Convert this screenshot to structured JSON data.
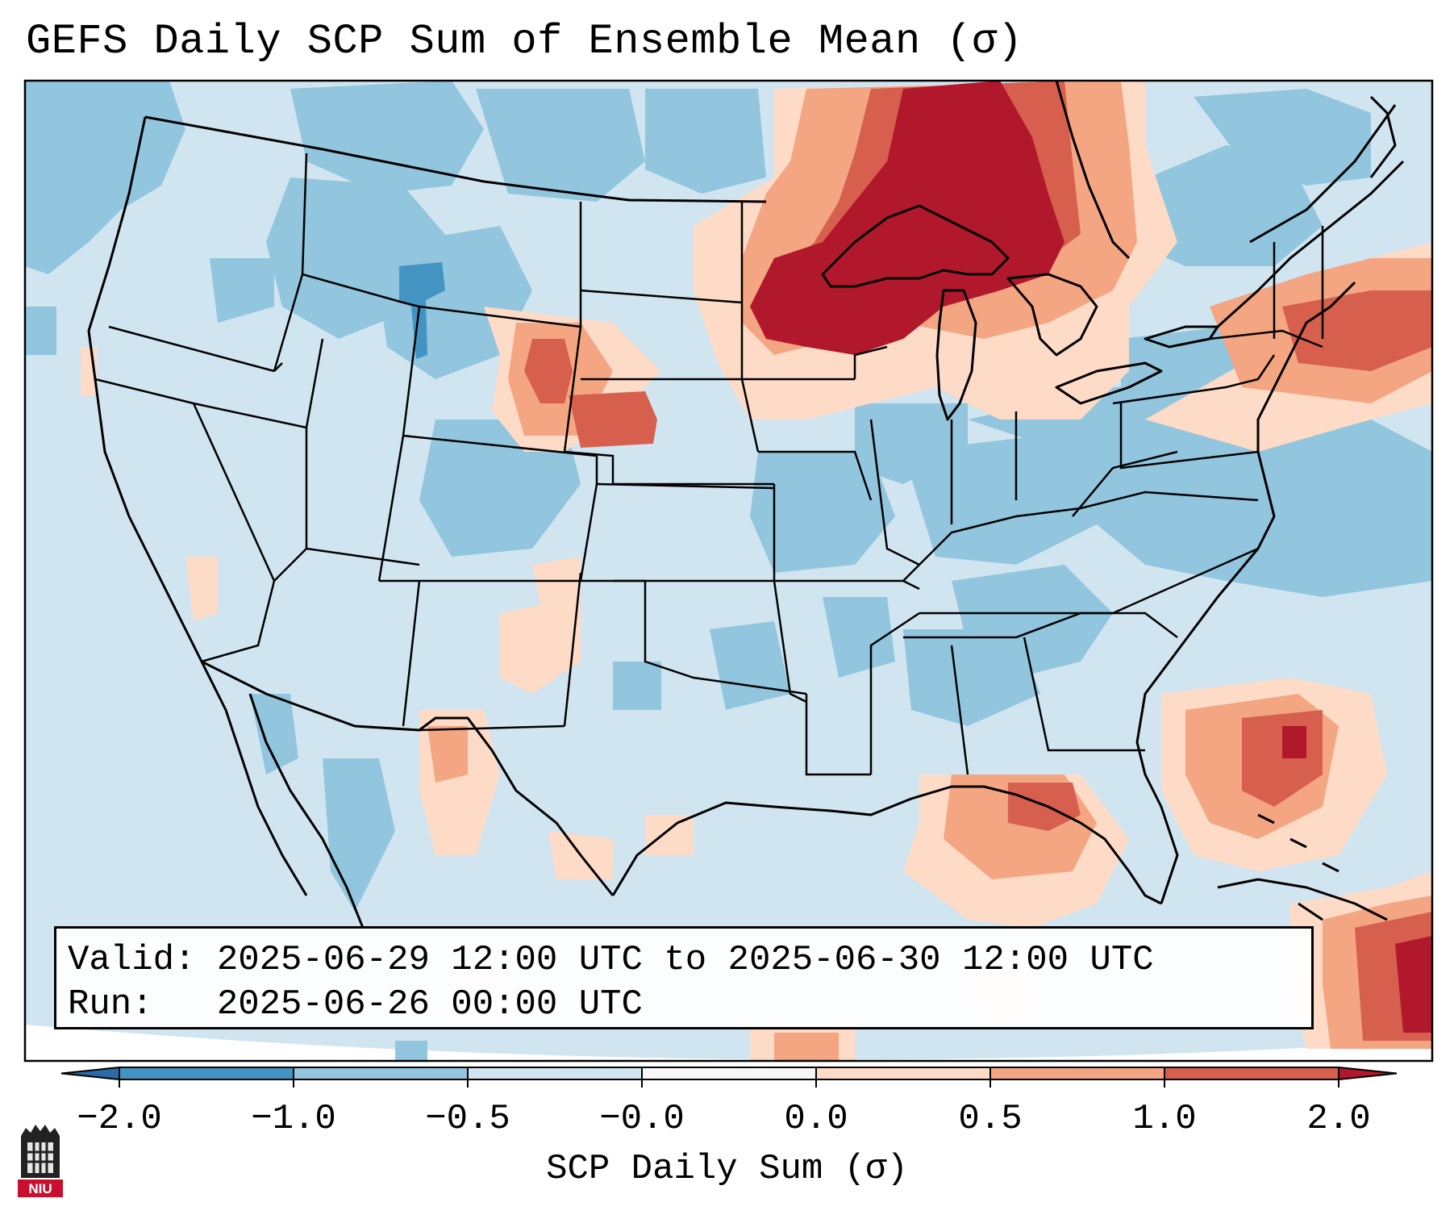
{
  "title": "GEFS Daily SCP Sum of Ensemble Mean (σ)",
  "info": {
    "valid_label": "Valid:",
    "valid_value": "2025-06-29 12:00 UTC to 2025-06-30 12:00 UTC",
    "run_label": "Run:",
    "run_value": "2025-06-26 00:00 UTC"
  },
  "colorbar": {
    "label": "SCP Daily Sum (σ)",
    "ticks": [
      "−2.0",
      "−1.0",
      "−0.5",
      "−0.0",
      "0.0",
      "0.5",
      "1.0",
      "2.0"
    ],
    "bins": [
      {
        "range": "< -2.0",
        "color": "#2b6ca8"
      },
      {
        "range": "-2.0 to -1.0",
        "color": "#4393c3"
      },
      {
        "range": "-1.0 to -0.5",
        "color": "#92c5de"
      },
      {
        "range": "-0.5 to -0.0",
        "color": "#d1e5f0"
      },
      {
        "range": "-0.0 to 0.0",
        "color": "#f7f7f7"
      },
      {
        "range": "0.0 to 0.5",
        "color": "#fddbc7"
      },
      {
        "range": "0.5 to 1.0",
        "color": "#f4a582"
      },
      {
        "range": "1.0 to 2.0",
        "color": "#d6604d"
      },
      {
        "range": "> 2.0",
        "color": "#b2182b"
      }
    ]
  },
  "features": {
    "max_region": "Upper Midwest / Great Lakes",
    "secondary_regions": [
      "Nebraska Panhandle",
      "Eastern Caribbean",
      "Western Atlantic"
    ]
  },
  "logo": {
    "text": "NIU"
  }
}
